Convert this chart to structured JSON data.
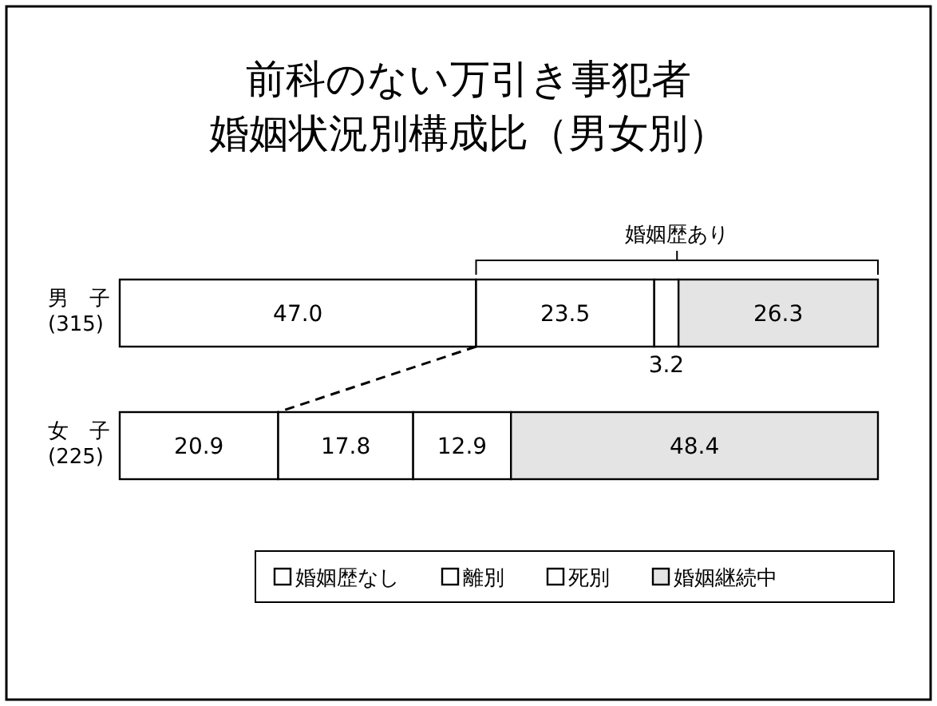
{
  "chart_data": {
    "type": "bar",
    "orientation": "horizontal",
    "stacked": true,
    "title": "前科のない万引き事犯者",
    "subtitle": "婚姻状況別構成比（男女別）",
    "categories": [
      "男　子\n(315)",
      "女　子\n(225)"
    ],
    "series": [
      {
        "name": "婚姻歴なし",
        "color": "#ffffff",
        "values": [
          47.0,
          20.9
        ],
        "value_labels": [
          "47.0",
          "20.9"
        ]
      },
      {
        "name": "離別",
        "color": "#ffffff",
        "values": [
          23.5,
          17.8
        ],
        "value_labels": [
          "23.5",
          "17.8"
        ]
      },
      {
        "name": "死別",
        "color": "#ffffff",
        "values": [
          3.2,
          12.9
        ],
        "value_labels": [
          "3.2",
          "12.9"
        ]
      },
      {
        "name": "婚姻継続中",
        "color": "#e4e4e4",
        "values": [
          26.3,
          48.4
        ],
        "value_labels": [
          "26.3",
          "48.4"
        ]
      }
    ],
    "annotations": [
      "婚姻歴あり"
    ],
    "legend": "bottom"
  }
}
